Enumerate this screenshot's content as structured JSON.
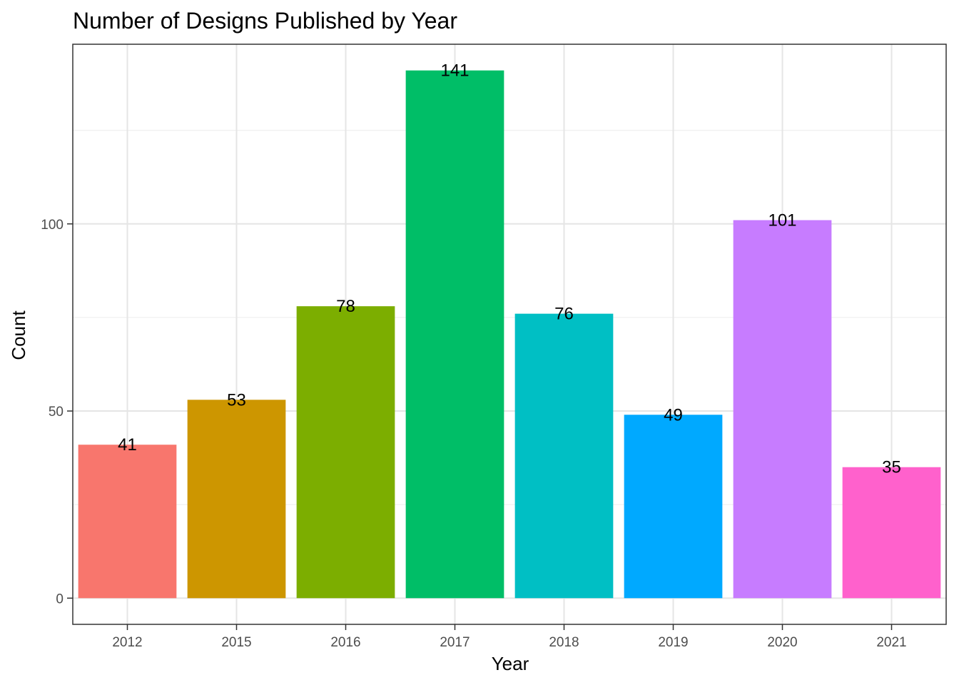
{
  "chart_data": {
    "type": "bar",
    "title": "Number of Designs Published by Year",
    "xlabel": "Year",
    "ylabel": "Count",
    "categories": [
      "2012",
      "2015",
      "2016",
      "2017",
      "2018",
      "2019",
      "2020",
      "2021"
    ],
    "values": [
      41,
      53,
      78,
      141,
      76,
      49,
      101,
      35
    ],
    "colors": [
      "#F8766D",
      "#CD9600",
      "#7CAE00",
      "#00BE67",
      "#00BFC4",
      "#00A9FF",
      "#C77CFF",
      "#FF61CC"
    ],
    "ylim": [
      -7,
      148
    ],
    "yticks": [
      0,
      50,
      100
    ],
    "grid": true,
    "legend": "none"
  }
}
